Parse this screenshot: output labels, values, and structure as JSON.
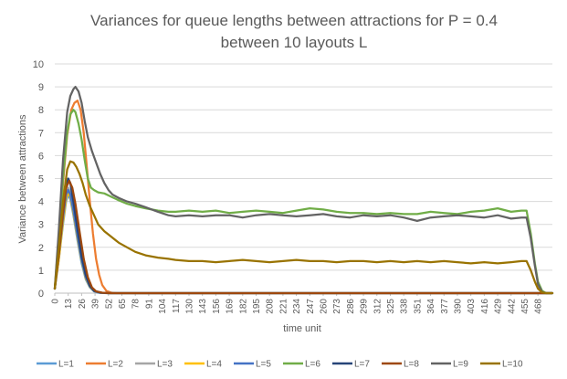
{
  "chart_data": {
    "type": "line",
    "title_lines": [
      "Variances for queue lengths between attractions for P = 0.4",
      "between 10 layouts L"
    ],
    "xlabel": "time unit",
    "ylabel": "Variance between attractions",
    "ylim": [
      0,
      10
    ],
    "yticks": [
      0,
      1,
      2,
      3,
      4,
      5,
      6,
      7,
      8,
      9,
      10
    ],
    "xlim": [
      0,
      482
    ],
    "xticks": [
      0,
      13,
      26,
      39,
      52,
      65,
      78,
      91,
      104,
      117,
      130,
      143,
      156,
      169,
      182,
      195,
      208,
      221,
      234,
      247,
      260,
      273,
      286,
      299,
      312,
      325,
      338,
      351,
      364,
      377,
      390,
      403,
      416,
      429,
      442,
      455,
      468
    ],
    "grid": "horizontal",
    "legend_position": "bottom",
    "series": [
      {
        "name": "L=1",
        "color": "#5b9bd5",
        "points": [
          [
            0,
            0.2
          ],
          [
            4,
            1.5
          ],
          [
            8,
            3.0
          ],
          [
            11,
            4.0
          ],
          [
            13,
            4.3
          ],
          [
            15,
            4.1
          ],
          [
            18,
            3.4
          ],
          [
            22,
            2.3
          ],
          [
            26,
            1.3
          ],
          [
            30,
            0.6
          ],
          [
            34,
            0.25
          ],
          [
            38,
            0.08
          ],
          [
            42,
            0.02
          ],
          [
            50,
            0
          ],
          [
            468,
            0
          ],
          [
            482,
            0
          ]
        ]
      },
      {
        "name": "L=2",
        "color": "#ed7d31",
        "points": [
          [
            0,
            0.2
          ],
          [
            4,
            2.2
          ],
          [
            8,
            4.8
          ],
          [
            12,
            6.9
          ],
          [
            16,
            8.0
          ],
          [
            19,
            8.3
          ],
          [
            22,
            8.4
          ],
          [
            25,
            8.0
          ],
          [
            28,
            7.0
          ],
          [
            31,
            5.5
          ],
          [
            34,
            4.0
          ],
          [
            37,
            2.6
          ],
          [
            40,
            1.5
          ],
          [
            43,
            0.8
          ],
          [
            46,
            0.35
          ],
          [
            50,
            0.1
          ],
          [
            55,
            0.02
          ],
          [
            60,
            0
          ],
          [
            468,
            0
          ],
          [
            482,
            0
          ]
        ]
      },
      {
        "name": "L=3",
        "color": "#a5a5a5",
        "points": [
          [
            0,
            0.2
          ],
          [
            4,
            1.6
          ],
          [
            8,
            3.2
          ],
          [
            11,
            4.3
          ],
          [
            13,
            4.6
          ],
          [
            15,
            4.4
          ],
          [
            18,
            3.7
          ],
          [
            22,
            2.5
          ],
          [
            26,
            1.5
          ],
          [
            30,
            0.7
          ],
          [
            34,
            0.3
          ],
          [
            38,
            0.1
          ],
          [
            44,
            0.02
          ],
          [
            52,
            0
          ],
          [
            468,
            0
          ],
          [
            482,
            0
          ]
        ]
      },
      {
        "name": "L=4",
        "color": "#ffc000",
        "points": [
          [
            0,
            0.2
          ],
          [
            4,
            1.5
          ],
          [
            8,
            3.1
          ],
          [
            11,
            4.1
          ],
          [
            13,
            4.4
          ],
          [
            15,
            4.2
          ],
          [
            18,
            3.5
          ],
          [
            22,
            2.4
          ],
          [
            26,
            1.4
          ],
          [
            30,
            0.65
          ],
          [
            34,
            0.28
          ],
          [
            38,
            0.09
          ],
          [
            44,
            0.02
          ],
          [
            52,
            0
          ],
          [
            468,
            0
          ],
          [
            482,
            0
          ]
        ]
      },
      {
        "name": "L=5",
        "color": "#4472c4",
        "points": [
          [
            0,
            0.2
          ],
          [
            4,
            1.7
          ],
          [
            8,
            3.3
          ],
          [
            11,
            4.3
          ],
          [
            13,
            4.5
          ],
          [
            15,
            4.3
          ],
          [
            18,
            3.6
          ],
          [
            22,
            2.5
          ],
          [
            26,
            1.45
          ],
          [
            30,
            0.7
          ],
          [
            34,
            0.3
          ],
          [
            38,
            0.1
          ],
          [
            44,
            0.02
          ],
          [
            52,
            0
          ],
          [
            468,
            0
          ],
          [
            482,
            0
          ]
        ]
      },
      {
        "name": "L=6",
        "color": "#70ad47",
        "points": [
          [
            0,
            0.2
          ],
          [
            4,
            2.5
          ],
          [
            8,
            5.0
          ],
          [
            12,
            7.0
          ],
          [
            15,
            7.8
          ],
          [
            18,
            8.0
          ],
          [
            20,
            7.9
          ],
          [
            23,
            7.4
          ],
          [
            26,
            6.7
          ],
          [
            29,
            5.8
          ],
          [
            32,
            5.0
          ],
          [
            35,
            4.6
          ],
          [
            38,
            4.5
          ],
          [
            42,
            4.4
          ],
          [
            48,
            4.35
          ],
          [
            55,
            4.2
          ],
          [
            62,
            4.05
          ],
          [
            70,
            3.9
          ],
          [
            78,
            3.8
          ],
          [
            88,
            3.7
          ],
          [
            100,
            3.6
          ],
          [
            110,
            3.55
          ],
          [
            117,
            3.55
          ],
          [
            130,
            3.6
          ],
          [
            143,
            3.55
          ],
          [
            156,
            3.6
          ],
          [
            169,
            3.5
          ],
          [
            182,
            3.55
          ],
          [
            195,
            3.6
          ],
          [
            208,
            3.55
          ],
          [
            221,
            3.5
          ],
          [
            234,
            3.6
          ],
          [
            247,
            3.7
          ],
          [
            260,
            3.65
          ],
          [
            273,
            3.55
          ],
          [
            286,
            3.5
          ],
          [
            299,
            3.5
          ],
          [
            312,
            3.45
          ],
          [
            325,
            3.5
          ],
          [
            338,
            3.45
          ],
          [
            351,
            3.45
          ],
          [
            364,
            3.55
          ],
          [
            377,
            3.5
          ],
          [
            390,
            3.45
          ],
          [
            403,
            3.55
          ],
          [
            416,
            3.6
          ],
          [
            429,
            3.7
          ],
          [
            442,
            3.55
          ],
          [
            452,
            3.6
          ],
          [
            457,
            3.6
          ],
          [
            461,
            2.6
          ],
          [
            465,
            1.3
          ],
          [
            468,
            0.5
          ],
          [
            472,
            0.1
          ],
          [
            476,
            0
          ],
          [
            482,
            0
          ]
        ]
      },
      {
        "name": "L=7",
        "color": "#264478",
        "points": [
          [
            0,
            0.2
          ],
          [
            4,
            1.8
          ],
          [
            8,
            3.6
          ],
          [
            11,
            4.7
          ],
          [
            13,
            5.0
          ],
          [
            15,
            4.8
          ],
          [
            18,
            4.0
          ],
          [
            22,
            2.8
          ],
          [
            26,
            1.6
          ],
          [
            30,
            0.8
          ],
          [
            34,
            0.32
          ],
          [
            38,
            0.1
          ],
          [
            44,
            0.02
          ],
          [
            52,
            0
          ],
          [
            468,
            0
          ],
          [
            482,
            0
          ]
        ]
      },
      {
        "name": "L=8",
        "color": "#9e480e",
        "points": [
          [
            0,
            0.2
          ],
          [
            4,
            1.7
          ],
          [
            8,
            3.5
          ],
          [
            11,
            4.6
          ],
          [
            14,
            4.9
          ],
          [
            17,
            4.6
          ],
          [
            20,
            3.9
          ],
          [
            24,
            2.7
          ],
          [
            28,
            1.5
          ],
          [
            32,
            0.7
          ],
          [
            36,
            0.25
          ],
          [
            40,
            0.08
          ],
          [
            46,
            0.02
          ],
          [
            54,
            0
          ],
          [
            468,
            0
          ],
          [
            482,
            0
          ]
        ]
      },
      {
        "name": "L=9",
        "color": "#636363",
        "points": [
          [
            0,
            0.2
          ],
          [
            4,
            2.8
          ],
          [
            8,
            5.8
          ],
          [
            12,
            7.9
          ],
          [
            15,
            8.6
          ],
          [
            18,
            8.9
          ],
          [
            20,
            9.0
          ],
          [
            23,
            8.8
          ],
          [
            26,
            8.3
          ],
          [
            29,
            7.5
          ],
          [
            32,
            6.8
          ],
          [
            36,
            6.2
          ],
          [
            40,
            5.7
          ],
          [
            44,
            5.2
          ],
          [
            48,
            4.8
          ],
          [
            52,
            4.5
          ],
          [
            56,
            4.3
          ],
          [
            62,
            4.15
          ],
          [
            70,
            4.0
          ],
          [
            78,
            3.9
          ],
          [
            88,
            3.75
          ],
          [
            100,
            3.55
          ],
          [
            110,
            3.4
          ],
          [
            117,
            3.35
          ],
          [
            130,
            3.4
          ],
          [
            143,
            3.35
          ],
          [
            156,
            3.4
          ],
          [
            169,
            3.4
          ],
          [
            182,
            3.3
          ],
          [
            195,
            3.4
          ],
          [
            208,
            3.45
          ],
          [
            221,
            3.4
          ],
          [
            234,
            3.35
          ],
          [
            247,
            3.4
          ],
          [
            260,
            3.45
          ],
          [
            273,
            3.35
          ],
          [
            286,
            3.3
          ],
          [
            299,
            3.4
          ],
          [
            312,
            3.35
          ],
          [
            325,
            3.4
          ],
          [
            338,
            3.3
          ],
          [
            351,
            3.15
          ],
          [
            364,
            3.3
          ],
          [
            377,
            3.35
          ],
          [
            390,
            3.4
          ],
          [
            403,
            3.35
          ],
          [
            416,
            3.3
          ],
          [
            429,
            3.4
          ],
          [
            442,
            3.25
          ],
          [
            452,
            3.3
          ],
          [
            457,
            3.3
          ],
          [
            461,
            2.4
          ],
          [
            465,
            1.2
          ],
          [
            468,
            0.4
          ],
          [
            472,
            0.05
          ],
          [
            476,
            0
          ],
          [
            482,
            0
          ]
        ]
      },
      {
        "name": "L=10",
        "color": "#997300",
        "points": [
          [
            0,
            0.2
          ],
          [
            4,
            2.0
          ],
          [
            8,
            4.0
          ],
          [
            12,
            5.4
          ],
          [
            15,
            5.75
          ],
          [
            18,
            5.7
          ],
          [
            21,
            5.5
          ],
          [
            24,
            5.2
          ],
          [
            27,
            4.8
          ],
          [
            30,
            4.3
          ],
          [
            34,
            3.8
          ],
          [
            38,
            3.4
          ],
          [
            42,
            3.0
          ],
          [
            48,
            2.7
          ],
          [
            55,
            2.45
          ],
          [
            62,
            2.2
          ],
          [
            70,
            2.0
          ],
          [
            78,
            1.8
          ],
          [
            88,
            1.65
          ],
          [
            100,
            1.55
          ],
          [
            110,
            1.5
          ],
          [
            117,
            1.45
          ],
          [
            130,
            1.4
          ],
          [
            143,
            1.4
          ],
          [
            156,
            1.35
          ],
          [
            169,
            1.4
          ],
          [
            182,
            1.45
          ],
          [
            195,
            1.4
          ],
          [
            208,
            1.35
          ],
          [
            221,
            1.4
          ],
          [
            234,
            1.45
          ],
          [
            247,
            1.4
          ],
          [
            260,
            1.4
          ],
          [
            273,
            1.35
          ],
          [
            286,
            1.4
          ],
          [
            299,
            1.4
          ],
          [
            312,
            1.35
          ],
          [
            325,
            1.4
          ],
          [
            338,
            1.35
          ],
          [
            351,
            1.4
          ],
          [
            364,
            1.35
          ],
          [
            377,
            1.4
          ],
          [
            390,
            1.35
          ],
          [
            403,
            1.3
          ],
          [
            416,
            1.35
          ],
          [
            429,
            1.3
          ],
          [
            442,
            1.35
          ],
          [
            452,
            1.4
          ],
          [
            457,
            1.4
          ],
          [
            461,
            1.0
          ],
          [
            465,
            0.5
          ],
          [
            468,
            0.2
          ],
          [
            472,
            0.03
          ],
          [
            476,
            0
          ],
          [
            482,
            0
          ]
        ]
      }
    ]
  }
}
